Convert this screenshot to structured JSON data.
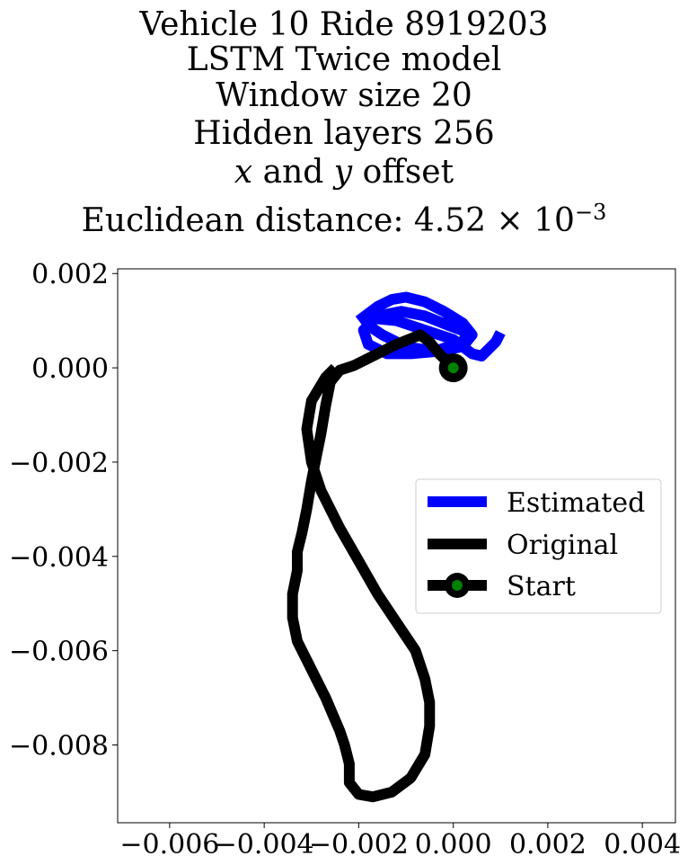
{
  "chart_data": {
    "type": "line",
    "title_lines": [
      "Vehicle 10 Ride 8919203",
      "LSTM Twice model",
      "Window size 20",
      "Hidden layers 256",
      "x and y offset",
      "Euclidean distance: 4.52 × 10⁻³"
    ],
    "title_offset_parts": {
      "x": "x",
      "mid": " and ",
      "y": "y",
      "rest": " offset"
    },
    "title_distance_parts": {
      "prefix": "Euclidean distance: 4.52 × 10",
      "exp": "−3"
    },
    "xlabel": "",
    "ylabel": "",
    "xlim": [
      -0.0071,
      0.0047
    ],
    "ylim": [
      -0.00965,
      0.0021
    ],
    "xticks": [
      -0.006,
      -0.004,
      -0.002,
      0.0,
      0.002,
      0.004
    ],
    "xtick_labels": [
      "−0.006",
      "−0.004",
      "−0.002",
      "0.000",
      "0.002",
      "0.004"
    ],
    "yticks": [
      0.002,
      0.0,
      -0.002,
      -0.004,
      -0.006,
      -0.008
    ],
    "ytick_labels": [
      "0.002",
      "0.000",
      "−0.002",
      "−0.004",
      "−0.006",
      "−0.008"
    ],
    "grid": false,
    "legend_placement": "center-right",
    "legend": [
      {
        "label": "Estimated",
        "color": "#0000ff"
      },
      {
        "label": "Original",
        "color": "#000000"
      },
      {
        "label": "Start",
        "color": "#000000",
        "marker_color": "#008000"
      }
    ],
    "series": [
      {
        "name": "Estimated",
        "color": "#0000ff",
        "x": [
          -0.002,
          -0.0016,
          -0.0013,
          -0.001,
          -0.0006,
          -0.0002,
          0.0002,
          0.0004,
          0.0002,
          -0.0003,
          -0.0009,
          -0.0014,
          -0.0018,
          -0.0019,
          -0.0016,
          -0.0011,
          -0.0006,
          -0.0001,
          0.0003,
          0.0002,
          -0.0004,
          -0.001,
          -0.0015,
          -0.0018,
          -0.0017,
          -0.0012,
          -0.0006,
          0.0,
          0.0004,
          0.0006,
          0.0009,
          0.001
        ],
        "y": [
          0.001,
          0.0013,
          0.00145,
          0.0015,
          0.0014,
          0.0012,
          0.00095,
          0.0007,
          0.00045,
          0.00035,
          0.0003,
          0.0003,
          0.0005,
          0.0008,
          0.0011,
          0.0012,
          0.0011,
          0.0009,
          0.00075,
          0.00055,
          0.00035,
          0.00045,
          0.0007,
          0.0009,
          0.00105,
          0.001,
          0.0008,
          0.0006,
          0.0003,
          0.00025,
          0.00055,
          0.00075
        ]
      },
      {
        "name": "Original",
        "color": "#000000",
        "x": [
          0.0,
          -0.0003,
          -0.0005,
          -0.0007,
          -0.0012,
          -0.0018,
          -0.0021,
          -0.0024,
          -0.0026,
          -0.0027,
          -0.0028,
          -0.0029,
          -0.003,
          -0.0031,
          -0.0032,
          -0.0033,
          -0.0033,
          -0.0034,
          -0.0034,
          -0.0033,
          -0.0031,
          -0.0029,
          -0.0027,
          -0.0024,
          -0.0023,
          -0.0022,
          -0.0022,
          -0.002,
          -0.0017,
          -0.0013,
          -0.0009,
          -0.0006,
          -0.0005,
          -0.0005,
          -0.0006,
          -0.0008,
          -0.0012,
          -0.0016,
          -0.002,
          -0.0024,
          -0.0028,
          -0.003,
          -0.0031,
          -0.003,
          -0.0027,
          -0.0025
        ],
        "y": [
          0.0,
          0.0003,
          0.00055,
          0.0007,
          0.0005,
          0.0002,
          5e-05,
          -5e-05,
          -0.0003,
          -0.0008,
          -0.0014,
          -0.0019,
          -0.0024,
          -0.003,
          -0.0035,
          -0.0039,
          -0.0043,
          -0.0048,
          -0.0053,
          -0.0058,
          -0.0062,
          -0.0066,
          -0.007,
          -0.0077,
          -0.008,
          -0.0084,
          -0.0088,
          -0.00905,
          -0.0091,
          -0.009,
          -0.0087,
          -0.0082,
          -0.0076,
          -0.0071,
          -0.0066,
          -0.006,
          -0.0054,
          -0.0048,
          -0.0041,
          -0.0034,
          -0.0026,
          -0.002,
          -0.0013,
          -0.0007,
          -0.0002,
          0.0
        ]
      },
      {
        "name": "Start",
        "color": "#000000",
        "marker_color": "#008000",
        "x": [
          0.0
        ],
        "y": [
          0.0
        ]
      }
    ]
  }
}
